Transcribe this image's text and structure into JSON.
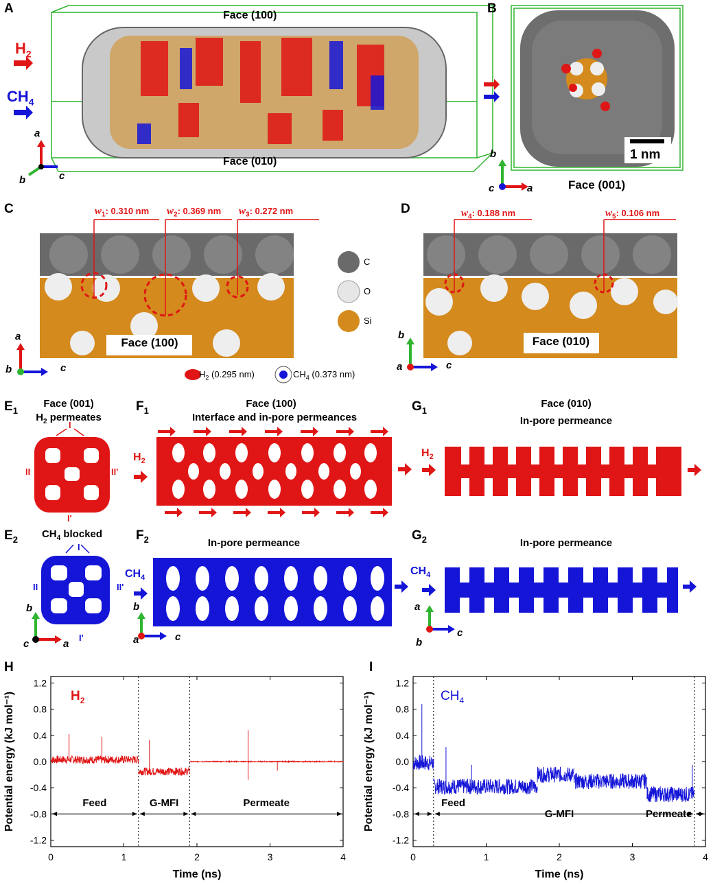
{
  "panels": {
    "A": {
      "letter": "A",
      "face_top": "Face (100)",
      "face_bottom": "Face (010)",
      "gas1": "H",
      "gas1_sub": "2",
      "gas2": "CH",
      "gas2_sub": "4",
      "axes": {
        "a": "a",
        "b": "b",
        "c": "c"
      }
    },
    "B": {
      "letter": "B",
      "scale": "1 nm",
      "face": "Face (001)",
      "axes": {
        "b": "b",
        "c": "c",
        "a": "a"
      }
    },
    "C": {
      "letter": "C",
      "w1_sym": "w",
      "w1_sub": "1",
      "w1_val": ": 0.310 nm",
      "w2_sym": "w",
      "w2_sub": "2",
      "w2_val": ": 0.369 nm",
      "w3_sym": "w",
      "w3_sub": "3",
      "w3_val": ": 0.272 nm",
      "face": "Face (100)",
      "axes": {
        "a": "a",
        "b": "b",
        "c": "c"
      }
    },
    "D": {
      "letter": "D",
      "w4_sym": "w",
      "w4_sub": "4",
      "w4_val": ": 0.188 nm",
      "w5_sym": "w",
      "w5_sub": "5",
      "w5_val": ": 0.106 nm",
      "face": "Face (010)",
      "axes": {
        "b": "b",
        "a": "a",
        "c": "c"
      }
    },
    "atoms": [
      {
        "label": "C",
        "color": "#666666"
      },
      {
        "label": "O",
        "color": "#e6e6e6"
      },
      {
        "label": "Si",
        "color": "#d48a1c"
      }
    ],
    "legend": {
      "h2": "H",
      "h2_sub": "2",
      "h2_size": " (0.295 nm)",
      "ch4": "CH",
      "ch4_sub": "4",
      "ch4_size": " (0.373 nm)"
    },
    "E1": {
      "letter": "E",
      "sub": "1",
      "title1": "Face (001)",
      "title2": "H",
      "title2_sub": "2",
      "title2_rest": " permeates",
      "I": "I",
      "II": "II",
      "IIp": "II'",
      "Ip": "I'"
    },
    "F1": {
      "letter": "F",
      "sub": "1",
      "title1": "Face (100)",
      "title2": "Interface and in-pore permeances",
      "gas": "H",
      "gas_sub": "2"
    },
    "G1": {
      "letter": "G",
      "sub": "1",
      "title1": "Face (010)",
      "title2": "In-pore permeance",
      "gas": "H",
      "gas_sub": "2"
    },
    "E2": {
      "letter": "E",
      "sub": "2",
      "title": "CH",
      "title_sub": "4",
      "title_rest": " blocked",
      "I": "I",
      "II": "II",
      "IIp": "II'",
      "Ip": "I'",
      "axes": {
        "b": "b",
        "c": "c",
        "a": "a"
      }
    },
    "F2": {
      "letter": "F",
      "sub": "2",
      "title": "In-pore permeance",
      "gas": "CH",
      "gas_sub": "4",
      "axes": {
        "b": "b",
        "a": "a",
        "c": "c"
      }
    },
    "G2": {
      "letter": "G",
      "sub": "2",
      "title": "In-pore permeance",
      "gas": "CH",
      "gas_sub": "4",
      "axes": {
        "a": "a",
        "b": "b",
        "c": "c"
      }
    },
    "H": {
      "letter": "H"
    },
    "I": {
      "letter": "I"
    }
  },
  "chart_data": [
    {
      "type": "line",
      "panel": "H",
      "series_label": "H2",
      "color": "#e01515",
      "xlabel": "Time (ns)",
      "ylabel": "Potential energy (kJ mol⁻¹)",
      "xlim": [
        0,
        4
      ],
      "ylim": [
        -1.3,
        1.3
      ],
      "xticks": [
        "0",
        "1",
        "2",
        "3",
        "4"
      ],
      "yticks": [
        "-1.2",
        "-0.8",
        "-0.4",
        "0.0",
        "0.4",
        "0.8",
        "1.2"
      ],
      "regions": [
        {
          "label": "Feed",
          "start": 0,
          "end": 1.2
        },
        {
          "label": "G-MFI",
          "start": 1.2,
          "end": 1.9
        },
        {
          "label": "Permeate",
          "start": 1.9,
          "end": 4
        }
      ],
      "dividers": [
        1.2,
        1.9
      ],
      "segments": [
        {
          "start": 0,
          "end": 1.2,
          "mean": 0.03
        },
        {
          "start": 1.2,
          "end": 1.9,
          "mean": -0.15
        },
        {
          "start": 1.9,
          "end": 4,
          "mean": 0.0
        }
      ],
      "peaks": [
        [
          0.25,
          0.42
        ],
        [
          0.7,
          0.38
        ],
        [
          1.35,
          0.33
        ],
        [
          2.7,
          0.48
        ],
        [
          2.7,
          -0.28
        ],
        [
          3.1,
          -0.14
        ]
      ]
    },
    {
      "type": "line",
      "panel": "I",
      "series_label": "CH4",
      "color": "#1515d8",
      "xlabel": "Time (ns)",
      "ylabel": "Potential energy (kJ mol⁻¹)",
      "xlim": [
        0,
        4
      ],
      "ylim": [
        -1.3,
        1.3
      ],
      "xticks": [
        "0",
        "1",
        "2",
        "3",
        "4"
      ],
      "yticks": [
        "-1.2",
        "-0.8",
        "-0.4",
        "0.0",
        "0.4",
        "0.8",
        "1.2"
      ],
      "regions": [
        {
          "label": "Feed",
          "start": 0,
          "end": 0.28
        },
        {
          "label": "G-MFI",
          "start": 0.28,
          "end": 3.85
        },
        {
          "label": "Permeate",
          "start": 3.85,
          "end": 4
        }
      ],
      "dividers": [
        0.28,
        3.85
      ],
      "segments": [
        {
          "start": 0,
          "end": 0.28,
          "mean": -0.02
        },
        {
          "start": 0.28,
          "end": 1.7,
          "mean": -0.38
        },
        {
          "start": 1.7,
          "end": 2.2,
          "mean": -0.2
        },
        {
          "start": 2.2,
          "end": 3.2,
          "mean": -0.3
        },
        {
          "start": 3.2,
          "end": 3.85,
          "mean": -0.5
        }
      ],
      "peaks": [
        [
          0.12,
          0.88
        ],
        [
          0.45,
          0.22
        ],
        [
          0.8,
          -0.05
        ],
        [
          3.82,
          -0.05
        ]
      ]
    }
  ]
}
